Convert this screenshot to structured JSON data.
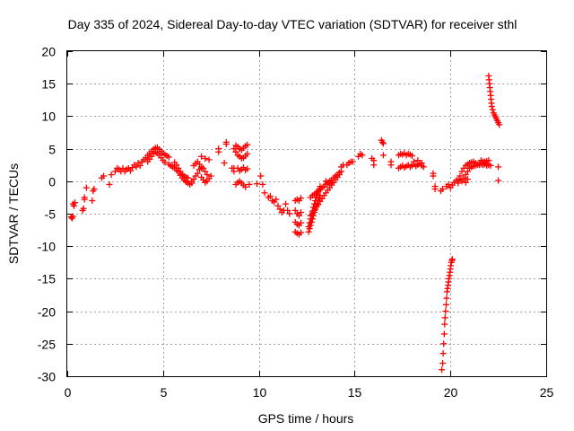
{
  "chart_data": {
    "type": "scatter",
    "title": "Day 335 of 2024, Sidereal Day-to-day VTEC variation (SDTVAR) for receiver sthl",
    "xlabel": "GPS time / hours",
    "ylabel": "SDTVAR / TECUs",
    "xlim": [
      0,
      25
    ],
    "ylim": [
      -30,
      20
    ],
    "xticks": [
      0,
      5,
      10,
      15,
      20,
      25
    ],
    "yticks": [
      -30,
      -25,
      -20,
      -15,
      -10,
      -5,
      0,
      5,
      10,
      15,
      20
    ],
    "xtick_labels": [
      "0",
      "5",
      "10",
      "15",
      "20",
      "25"
    ],
    "ytick_labels": [
      "-30",
      "-25",
      "-20",
      "-15",
      "-10",
      "-5",
      "0",
      "5",
      "10",
      "15",
      "20"
    ],
    "grid": true,
    "marker": "+",
    "color": "#ff0000",
    "series": [
      {
        "name": "sthl",
        "x": [
          0.2,
          0.25,
          0.3,
          0.3,
          0.35,
          0.4,
          0.8,
          0.85,
          0.9,
          0.9,
          1.0,
          1.3,
          1.35,
          1.4,
          1.8,
          1.9,
          2.2,
          2.3,
          2.5,
          2.6,
          2.7,
          2.8,
          2.9,
          3.0,
          3.1,
          3.2,
          3.3,
          3.4,
          3.5,
          3.6,
          3.7,
          3.8,
          3.9,
          4.0,
          4.1,
          4.2,
          4.3,
          4.4,
          4.5,
          4.6,
          4.7,
          4.8,
          4.9,
          5.0,
          5.1,
          5.2,
          5.3,
          4.2,
          4.3,
          4.4,
          4.5,
          4.6,
          4.7,
          4.8,
          4.9,
          5.0,
          5.1,
          5.3,
          5.4,
          5.5,
          5.6,
          5.7,
          5.8,
          5.9,
          6.0,
          6.1,
          6.2,
          6.3,
          5.6,
          5.7,
          5.8,
          5.9,
          6.0,
          6.1,
          6.2,
          6.3,
          6.4,
          6.5,
          5.9,
          6.0,
          6.1,
          6.2,
          6.5,
          6.6,
          6.7,
          6.8,
          6.9,
          7.0,
          6.6,
          6.7,
          6.8,
          6.9,
          7.0,
          7.1,
          7.2,
          7.3,
          7.0,
          7.1,
          7.2,
          7.3,
          7.4,
          7.5,
          7.0,
          7.2,
          7.4,
          7.9,
          7.9,
          8.2,
          8.3,
          8.3,
          8.6,
          8.7,
          8.8,
          8.9,
          9.0,
          9.1,
          9.2,
          9.3,
          9.4,
          8.7,
          8.8,
          8.9,
          9.0,
          9.1,
          9.2,
          9.3,
          9.4,
          8.8,
          8.9,
          9.0,
          9.1,
          9.2,
          9.3,
          9.4,
          8.7,
          8.8,
          8.9,
          9.0,
          9.1,
          9.2,
          9.3,
          9.5,
          9.9,
          10.1,
          10.2,
          10.3,
          10.5,
          10.6,
          10.7,
          10.8,
          10.9,
          11.0,
          11.1,
          11.2,
          11.3,
          11.4,
          11.5,
          11.6,
          11.9,
          12.0,
          12.1,
          12.2,
          11.9,
          12.0,
          12.1,
          12.2,
          11.9,
          12.0,
          12.1,
          12.2,
          11.9,
          12.0,
          12.1,
          12.2,
          12.6,
          12.65,
          12.7,
          12.75,
          12.8,
          12.85,
          12.9,
          12.95,
          13.0,
          13.05,
          13.1,
          13.15,
          13.2,
          12.6,
          12.65,
          12.7,
          12.75,
          12.8,
          12.85,
          12.9,
          12.95,
          13.0,
          13.05,
          13.1,
          13.15,
          13.2,
          12.7,
          12.8,
          12.9,
          13.0,
          13.1,
          13.2,
          13.3,
          13.4,
          13.5,
          13.6,
          13.7,
          13.8,
          13.9,
          14.0,
          14.1,
          14.2,
          14.3,
          12.7,
          12.8,
          12.9,
          13.0,
          13.1,
          13.2,
          13.3,
          13.4,
          13.5,
          13.6,
          13.7,
          13.8,
          13.9,
          14.0,
          14.1,
          14.2,
          13.5,
          13.6,
          13.7,
          13.8,
          14.3,
          14.4,
          14.6,
          14.7,
          14.8,
          14.9,
          15.2,
          15.3,
          15.4,
          15.9,
          16.0,
          16.0,
          16.4,
          16.45,
          16.5,
          16.5,
          16.9,
          16.9,
          17.3,
          17.4,
          17.5,
          17.6,
          17.7,
          17.8,
          17.9,
          18.0,
          17.3,
          17.4,
          17.5,
          17.6,
          17.7,
          17.8,
          17.9,
          18.0,
          18.1,
          18.2,
          18.3,
          18.4,
          18.5,
          18.6,
          18.1,
          18.3,
          18.5,
          19.1,
          19.1,
          19.2,
          19.2,
          19.5,
          19.6,
          19.8,
          19.9,
          20.0,
          20.1,
          20.2,
          20.3,
          20.4,
          20.5,
          20.6,
          20.7,
          20.8,
          20.9,
          20.4,
          20.5,
          20.6,
          20.7,
          20.8,
          20.9,
          21.0,
          21.1,
          21.2,
          21.3,
          21.4,
          21.5,
          21.6,
          21.7,
          21.8,
          21.9,
          22.0,
          20.8,
          20.9,
          21.0,
          21.1,
          21.2,
          21.3,
          21.4,
          21.5,
          21.6,
          21.7,
          21.8,
          21.9,
          22.0,
          21.6,
          21.7,
          21.8,
          21.9,
          22.0,
          22.1,
          22.5,
          22.5,
          19.55,
          19.6,
          19.62,
          19.65,
          19.68,
          19.7,
          19.72,
          19.75,
          19.78,
          19.8,
          19.82,
          19.85,
          19.88,
          19.9,
          19.92,
          19.95,
          19.98,
          20.0,
          20.02,
          20.05,
          20.08,
          20.1,
          22.0,
          22.02,
          22.04,
          22.06,
          22.08,
          22.1,
          22.12,
          22.14,
          22.16,
          22.2,
          22.25,
          22.3,
          22.35,
          22.4,
          22.45,
          22.5,
          22.55
        ],
        "y": [
          -5.5,
          -5.7,
          -5.4,
          -3.5,
          -3.8,
          -3.3,
          -4.5,
          -4.2,
          -2.8,
          -2.5,
          -1.0,
          -3.0,
          -1.5,
          -1.2,
          0.5,
          0.8,
          -0.5,
          1.0,
          1.5,
          2.0,
          1.8,
          1.5,
          2.0,
          1.5,
          1.8,
          2.0,
          1.6,
          2.1,
          2.5,
          2.2,
          2.8,
          2.4,
          3.0,
          3.3,
          3.6,
          4.0,
          4.3,
          4.6,
          4.9,
          5.1,
          5.2,
          4.9,
          4.6,
          4.3,
          4.1,
          3.9,
          3.7,
          3.0,
          3.4,
          3.8,
          4.2,
          4.5,
          4.3,
          4.0,
          3.6,
          3.2,
          2.9,
          2.6,
          2.4,
          2.2,
          2.0,
          1.7,
          1.5,
          1.2,
          1.0,
          0.8,
          0.6,
          0.5,
          2.9,
          2.5,
          2.0,
          1.5,
          1.0,
          0.5,
          0.0,
          -0.3,
          -0.5,
          -0.3,
          0.9,
          0.5,
          0.2,
          -0.1,
          0.0,
          0.3,
          0.8,
          1.2,
          1.8,
          2.0,
          2.4,
          2.7,
          3.0,
          2.6,
          2.2,
          2.0,
          1.5,
          1.0,
          0.6,
          0.2,
          -0.2,
          0.0,
          0.4,
          0.8,
          3.8,
          3.5,
          3.3,
          5.0,
          4.5,
          2.8,
          6.0,
          5.7,
          2.0,
          1.5,
          5.5,
          5.3,
          5.0,
          4.8,
          5.1,
          5.4,
          5.6,
          5.0,
          4.5,
          4.0,
          3.8,
          3.5,
          3.6,
          3.9,
          4.2,
          4.5,
          2.0,
          1.6,
          1.8,
          2.1,
          1.7,
          1.9,
          2.0,
          -0.5,
          -0.2,
          0.0,
          -0.3,
          -0.6,
          -0.9,
          -0.5,
          -0.4,
          0.8,
          -0.5,
          -1.8,
          -2.5,
          -2.3,
          -3.0,
          -3.2,
          -2.8,
          -3.8,
          -4.3,
          -4.8,
          -4.5,
          -3.5,
          -4.5,
          -5.0,
          -3.0,
          -2.8,
          -3.0,
          -2.6,
          -4.5,
          -5.0,
          -5.3,
          -4.8,
          -6.3,
          -6.6,
          -6.8,
          -6.4,
          -7.8,
          -8.0,
          -8.2,
          -7.9,
          -7.8,
          -7.3,
          -6.8,
          -6.3,
          -5.8,
          -5.3,
          -4.8,
          -4.3,
          -3.8,
          -3.4,
          -3.0,
          -2.6,
          -2.2,
          -7.0,
          -6.4,
          -5.8,
          -5.2,
          -4.6,
          -4.0,
          -3.5,
          -3.0,
          -2.5,
          -2.0,
          -1.6,
          -1.2,
          -0.8,
          -2.5,
          -2.2,
          -2.0,
          -1.8,
          -1.5,
          -1.3,
          -1.0,
          -0.8,
          -0.5,
          -0.3,
          0.0,
          0.2,
          0.5,
          0.8,
          1.0,
          1.3,
          1.5,
          -5.3,
          -4.9,
          -4.5,
          -4.0,
          -3.6,
          -3.1,
          -2.7,
          -2.2,
          -1.8,
          -1.4,
          -1.0,
          -0.6,
          -0.2,
          0.2,
          0.6,
          1.0,
          0.0,
          -0.2,
          -0.4,
          -0.3,
          2.2,
          2.5,
          2.5,
          2.8,
          3.0,
          3.0,
          3.8,
          4.2,
          4.0,
          3.5,
          2.5,
          3.2,
          6.3,
          6.0,
          4.0,
          5.8,
          3.0,
          2.5,
          4.0,
          4.2,
          4.1,
          4.3,
          4.0,
          4.2,
          4.1,
          3.9,
          2.0,
          2.2,
          2.4,
          2.1,
          2.3,
          2.5,
          2.2,
          2.4,
          2.6,
          2.3,
          2.5,
          2.7,
          2.4,
          2.2,
          3.0,
          3.2,
          2.8,
          1.2,
          0.8,
          -0.8,
          -1.2,
          -1.5,
          -1.2,
          -0.8,
          -0.5,
          -1.0,
          -0.6,
          -0.2,
          0.1,
          -0.3,
          0.3,
          0.0,
          0.5,
          -0.2,
          0.3,
          0.2,
          0.8,
          1.5,
          2.0,
          2.4,
          2.6,
          2.8,
          2.9,
          3.0,
          2.8,
          2.6,
          2.5,
          2.6,
          2.8,
          3.0,
          3.1,
          3.2,
          1.0,
          1.5,
          2.0,
          2.2,
          2.3,
          2.4,
          2.5,
          2.6,
          2.7,
          2.5,
          2.6,
          2.4,
          2.5,
          3.2,
          3.0,
          2.8,
          2.6,
          2.5,
          2.4,
          2.2,
          0.1,
          -29.0,
          -28.0,
          -26.5,
          -25.0,
          -23.5,
          -22.0,
          -21.0,
          -20.0,
          -19.0,
          -18.0,
          -17.0,
          -16.5,
          -16.0,
          -15.5,
          -15.0,
          -14.5,
          -14.0,
          -13.5,
          -13.0,
          -12.5,
          -12.2,
          -12.0,
          16.2,
          15.6,
          15.0,
          14.4,
          13.8,
          13.2,
          12.6,
          12.0,
          11.5,
          11.0,
          10.5,
          10.2,
          9.9,
          9.6,
          9.3,
          9.0,
          8.7
        ]
      }
    ]
  }
}
